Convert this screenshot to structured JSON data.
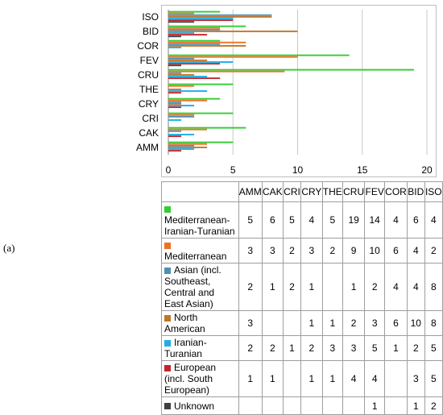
{
  "figure_label": "(a)",
  "chart_data": {
    "type": "bar",
    "orientation": "horizontal",
    "categories": [
      "AMM",
      "CAK",
      "CRI",
      "CRY",
      "THE",
      "CRU",
      "FEV",
      "COR",
      "BID",
      "ISO"
    ],
    "x_ticks": [
      "0",
      "5",
      "10",
      "15",
      "20"
    ],
    "xlim": [
      0,
      20
    ],
    "grid": "vertical",
    "legend": "table-below",
    "series": [
      {
        "name": "Mediterranean-Iranian-Turanian",
        "color": "#33cc33",
        "values": [
          5,
          6,
          5,
          4,
          5,
          19,
          14,
          4,
          6,
          4
        ]
      },
      {
        "name": "Mediterranean",
        "color": "#f07020",
        "values": [
          3,
          3,
          2,
          3,
          2,
          9,
          10,
          6,
          4,
          2
        ]
      },
      {
        "name": "Asian (incl. Southeast, Central and East Asian)",
        "color": "#4f90b0",
        "values": [
          2,
          1,
          2,
          1,
          null,
          1,
          2,
          4,
          4,
          8
        ]
      },
      {
        "name": "North American",
        "color": "#c0752a",
        "values": [
          3,
          null,
          null,
          1,
          1,
          2,
          3,
          6,
          10,
          8
        ]
      },
      {
        "name": "Iranian-Turanian",
        "color": "#1eaee8",
        "values": [
          2,
          2,
          1,
          2,
          3,
          3,
          5,
          1,
          2,
          5
        ]
      },
      {
        "name": "European (incl. South European)",
        "color": "#c0282e",
        "values": [
          1,
          1,
          null,
          1,
          1,
          4,
          4,
          null,
          3,
          5
        ]
      },
      {
        "name": "Unknown",
        "color": "#404040",
        "values": [
          null,
          null,
          null,
          null,
          null,
          null,
          1,
          null,
          1,
          2
        ]
      }
    ]
  },
  "table": {
    "legend_labels": [
      "Mediterranean-Iranian-Turanian",
      "Mediterranean",
      "Asian (incl. Southeast, Central and East Asian)",
      "North American",
      "Iranian-Turanian",
      "European (incl. South European)",
      "Unknown"
    ]
  }
}
